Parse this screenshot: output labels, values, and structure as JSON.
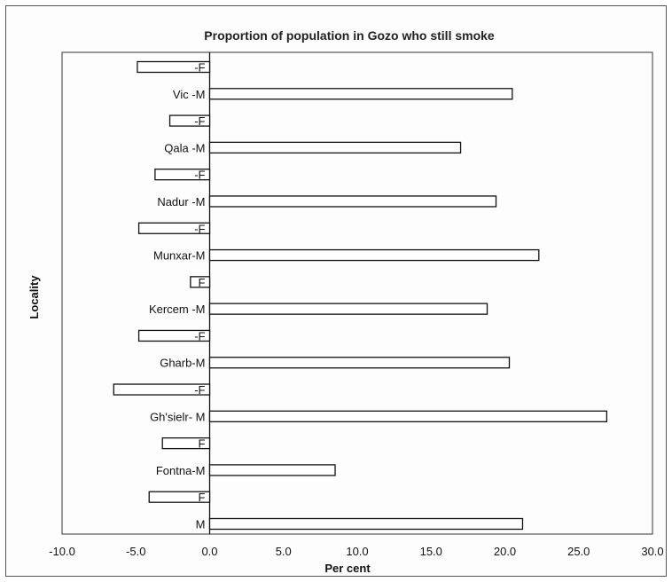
{
  "chart_data": {
    "type": "bar",
    "orientation": "horizontal",
    "title": "Proportion of population in Gozo who still smoke",
    "xlabel": "Per cent",
    "ylabel": "Locality",
    "xlim": [
      -10.0,
      30.0
    ],
    "xticks": [
      "-10.0",
      "-5.0",
      "0.0",
      "5.0",
      "10.0",
      "15.0",
      "20.0",
      "25.0",
      "30.0"
    ],
    "categories": [
      "-F",
      "Vic -M",
      "-F",
      "Qala -M",
      "-F",
      "Nadur -M",
      "-F",
      "Munxar-M",
      "F",
      "Kercem -M",
      "-F",
      "Gharb-M",
      "-F",
      "Gh'sielr- M",
      "F",
      "Fontna-M",
      "F",
      "M"
    ],
    "values": [
      -4.9,
      20.5,
      -2.7,
      17.0,
      -3.7,
      19.4,
      -4.8,
      22.3,
      -1.3,
      18.8,
      -4.8,
      20.3,
      -6.5,
      26.9,
      -3.2,
      8.5,
      -4.1,
      21.2
    ],
    "grid": false,
    "legend": "none",
    "colors": {
      "bar_fill": "#ffffff",
      "bar_stroke": "#111111"
    }
  }
}
